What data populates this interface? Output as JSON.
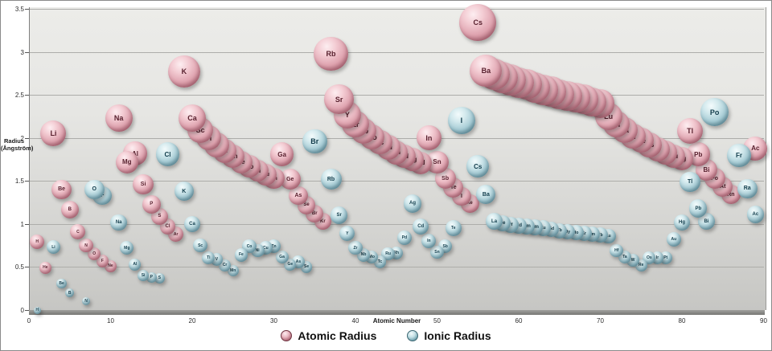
{
  "chart": {
    "y_axis": {
      "title_line1": "Radius",
      "title_line2": "(Ångström)",
      "min": 0,
      "max": 3.5,
      "ticks": [
        "0",
        "0.5",
        "1",
        "1.5",
        "2",
        "2.5",
        "3",
        "3.5"
      ]
    },
    "x_axis": {
      "title": "Atomic Number",
      "min": 0,
      "max": 90,
      "ticks": [
        "0",
        "10",
        "20",
        "30",
        "40",
        "50",
        "60",
        "70",
        "80",
        "90"
      ]
    },
    "legend": {
      "atomic": "Atomic Radius",
      "ionic": "Ionic Radius"
    },
    "colors": {
      "atomic_ball": "#dfa4b0",
      "atomic_label": "#58202e",
      "ionic_ball": "#a8cdd6",
      "ionic_label": "#113c4b",
      "plot_bg_top": "#ecece9",
      "plot_bg_bottom": "#c6c6c3",
      "gridline": "#adadaa"
    }
  },
  "chart_data": {
    "type": "scatter",
    "title": "",
    "xlabel": "Atomic Number",
    "ylabel": "Radius (Ångström)",
    "xlim": [
      0,
      90
    ],
    "ylim": [
      0,
      3.5
    ],
    "grid": "horizontal",
    "legend_position": "bottom",
    "point_format": [
      "element_symbol",
      "atomic_number",
      "radius_angstrom"
    ],
    "series": [
      {
        "name": "Atomic Radius",
        "key": "atomic",
        "points": [
          [
            "H",
            1,
            0.79
          ],
          [
            "He",
            2,
            0.49
          ],
          [
            "Li",
            3,
            2.05
          ],
          [
            "Be",
            4,
            1.4
          ],
          [
            "B",
            5,
            1.17
          ],
          [
            "C",
            6,
            0.91
          ],
          [
            "N",
            7,
            0.75
          ],
          [
            "O",
            8,
            0.65
          ],
          [
            "F",
            9,
            0.57
          ],
          [
            "Ne",
            10,
            0.51
          ],
          [
            "Na",
            11,
            2.23
          ],
          [
            "Mg",
            12,
            1.72
          ],
          [
            "Al",
            13,
            1.82
          ],
          [
            "Si",
            14,
            1.46
          ],
          [
            "P",
            15,
            1.23
          ],
          [
            "S",
            16,
            1.09
          ],
          [
            "Cl",
            17,
            0.97
          ],
          [
            "Ar",
            18,
            0.88
          ],
          [
            "K",
            19,
            2.77
          ],
          [
            "Ca",
            20,
            2.23
          ],
          [
            "Sc",
            21,
            2.09
          ],
          [
            "Ti",
            22,
            2.0
          ],
          [
            "V",
            23,
            1.92
          ],
          [
            "Cr",
            24,
            1.85
          ],
          [
            "Mn",
            25,
            1.79
          ],
          [
            "Fe",
            26,
            1.72
          ],
          [
            "Co",
            27,
            1.67
          ],
          [
            "Ni",
            28,
            1.62
          ],
          [
            "Cu",
            29,
            1.57
          ],
          [
            "Zn",
            30,
            1.53
          ],
          [
            "Ga",
            31,
            1.81
          ],
          [
            "Ge",
            32,
            1.52
          ],
          [
            "As",
            33,
            1.33
          ],
          [
            "Se",
            34,
            1.22
          ],
          [
            "Br",
            35,
            1.12
          ],
          [
            "Kr",
            36,
            1.03
          ],
          [
            "Rb",
            37,
            2.98
          ],
          [
            "Sr",
            38,
            2.45
          ],
          [
            "Y",
            39,
            2.27
          ],
          [
            "Zr",
            40,
            2.16
          ],
          [
            "Nb",
            41,
            2.08
          ],
          [
            "Mo",
            42,
            2.01
          ],
          [
            "Tc",
            43,
            1.95
          ],
          [
            "Ru",
            44,
            1.89
          ],
          [
            "Rh",
            45,
            1.83
          ],
          [
            "Pd",
            46,
            1.79
          ],
          [
            "Ag",
            47,
            1.75
          ],
          [
            "Cd",
            48,
            1.71
          ],
          [
            "In",
            49,
            2.0
          ],
          [
            "Sn",
            50,
            1.72
          ],
          [
            "Sb",
            51,
            1.53
          ],
          [
            "Te",
            52,
            1.42
          ],
          [
            "I",
            53,
            1.32
          ],
          [
            "Xe",
            54,
            1.24
          ],
          [
            "Cs",
            55,
            3.34
          ],
          [
            "Ba",
            56,
            2.78
          ],
          [
            "La",
            57,
            2.74
          ],
          [
            "Ce",
            58,
            2.7
          ],
          [
            "Pr",
            59,
            2.67
          ],
          [
            "Nd",
            60,
            2.64
          ],
          [
            "Pm",
            61,
            2.62
          ],
          [
            "Sm",
            62,
            2.59
          ],
          [
            "Eu",
            63,
            2.56
          ],
          [
            "Gd",
            64,
            2.54
          ],
          [
            "Tb",
            65,
            2.51
          ],
          [
            "Dy",
            66,
            2.49
          ],
          [
            "Ho",
            67,
            2.47
          ],
          [
            "Er",
            68,
            2.45
          ],
          [
            "Tm",
            69,
            2.42
          ],
          [
            "Yb",
            70,
            2.4
          ],
          [
            "Lu",
            71,
            2.25
          ],
          [
            "Hf",
            72,
            2.16
          ],
          [
            "Ta",
            73,
            2.09
          ],
          [
            "W",
            74,
            2.02
          ],
          [
            "Re",
            75,
            1.97
          ],
          [
            "Os",
            76,
            1.92
          ],
          [
            "Ir",
            77,
            1.87
          ],
          [
            "Pt",
            78,
            1.83
          ],
          [
            "Au",
            79,
            1.79
          ],
          [
            "Hg",
            80,
            1.76
          ],
          [
            "Tl",
            81,
            2.08
          ],
          [
            "Pb",
            82,
            1.81
          ],
          [
            "Bi",
            83,
            1.63
          ],
          [
            "Po",
            84,
            1.53
          ],
          [
            "At",
            85,
            1.43
          ],
          [
            "Rn",
            86,
            1.34
          ],
          [
            "Ac",
            89,
            1.88
          ]
        ]
      },
      {
        "name": "Ionic Radius",
        "key": "ionic",
        "points": [
          [
            "H",
            1,
            0.0
          ],
          [
            "Li",
            3,
            0.73
          ],
          [
            "Be",
            4,
            0.31
          ],
          [
            "B",
            5,
            0.2
          ],
          [
            "N",
            7,
            0.1
          ],
          [
            "O",
            8,
            1.4
          ],
          [
            "F",
            9,
            1.33
          ],
          [
            "Na",
            11,
            1.02
          ],
          [
            "Mg",
            12,
            0.72
          ],
          [
            "Al",
            13,
            0.53
          ],
          [
            "Si",
            14,
            0.4
          ],
          [
            "P",
            15,
            0.38
          ],
          [
            "S",
            16,
            0.37
          ],
          [
            "Cl",
            17,
            1.81
          ],
          [
            "K",
            19,
            1.38
          ],
          [
            "Ca",
            20,
            1.0
          ],
          [
            "Sc",
            21,
            0.75
          ],
          [
            "Ti",
            22,
            0.61
          ],
          [
            "V",
            23,
            0.59
          ],
          [
            "Cr",
            24,
            0.52
          ],
          [
            "Mn",
            25,
            0.46
          ],
          [
            "Fe",
            26,
            0.64
          ],
          [
            "Co",
            27,
            0.74
          ],
          [
            "Ni",
            28,
            0.69
          ],
          [
            "Cu",
            29,
            0.72
          ],
          [
            "Zn",
            30,
            0.74
          ],
          [
            "Ga",
            31,
            0.62
          ],
          [
            "Ge",
            32,
            0.53
          ],
          [
            "As",
            33,
            0.56
          ],
          [
            "Se",
            34,
            0.5
          ],
          [
            "Br",
            35,
            1.96
          ],
          [
            "Rb",
            37,
            1.52
          ],
          [
            "Sr",
            38,
            1.1
          ],
          [
            "Y",
            39,
            0.89
          ],
          [
            "Zr",
            40,
            0.72
          ],
          [
            "Nb",
            41,
            0.64
          ],
          [
            "Mo",
            42,
            0.62
          ],
          [
            "Tc",
            43,
            0.56
          ],
          [
            "Ru",
            44,
            0.65
          ],
          [
            "Rh",
            45,
            0.66
          ],
          [
            "Pd",
            46,
            0.84
          ],
          [
            "Ag",
            47,
            1.24
          ],
          [
            "Cd",
            48,
            0.97
          ],
          [
            "In",
            49,
            0.8
          ],
          [
            "Sn",
            50,
            0.67
          ],
          [
            "Sb",
            51,
            0.74
          ],
          [
            "Te",
            52,
            0.95
          ],
          [
            "I",
            53,
            2.2
          ],
          [
            "Cs",
            55,
            1.67
          ],
          [
            "Ba",
            56,
            1.34
          ],
          [
            "La",
            57,
            1.03
          ],
          [
            "Ce",
            58,
            1.01
          ],
          [
            "Pr",
            59,
            0.99
          ],
          [
            "Nd",
            60,
            0.98
          ],
          [
            "Pm",
            61,
            0.97
          ],
          [
            "Sm",
            62,
            0.96
          ],
          [
            "Eu",
            63,
            0.95
          ],
          [
            "Gd",
            64,
            0.94
          ],
          [
            "Tb",
            65,
            0.92
          ],
          [
            "Dy",
            66,
            0.91
          ],
          [
            "Ho",
            67,
            0.9
          ],
          [
            "Er",
            68,
            0.89
          ],
          [
            "Tm",
            69,
            0.88
          ],
          [
            "Yb",
            70,
            0.87
          ],
          [
            "Lu",
            71,
            0.86
          ],
          [
            "Hf",
            72,
            0.69
          ],
          [
            "Ta",
            73,
            0.62
          ],
          [
            "W",
            74,
            0.58
          ],
          [
            "Re",
            75,
            0.52
          ],
          [
            "Os",
            76,
            0.61
          ],
          [
            "Ir",
            77,
            0.61
          ],
          [
            "Pt",
            78,
            0.61
          ],
          [
            "Au",
            79,
            0.82
          ],
          [
            "Hg",
            80,
            1.02
          ],
          [
            "Tl",
            81,
            1.49
          ],
          [
            "Pb",
            82,
            1.18
          ],
          [
            "Bi",
            83,
            1.03
          ],
          [
            "Po",
            84,
            2.3
          ],
          [
            "Fr",
            87,
            1.8
          ],
          [
            "Ra",
            88,
            1.41
          ],
          [
            "Ac",
            89,
            1.11
          ]
        ]
      }
    ]
  }
}
